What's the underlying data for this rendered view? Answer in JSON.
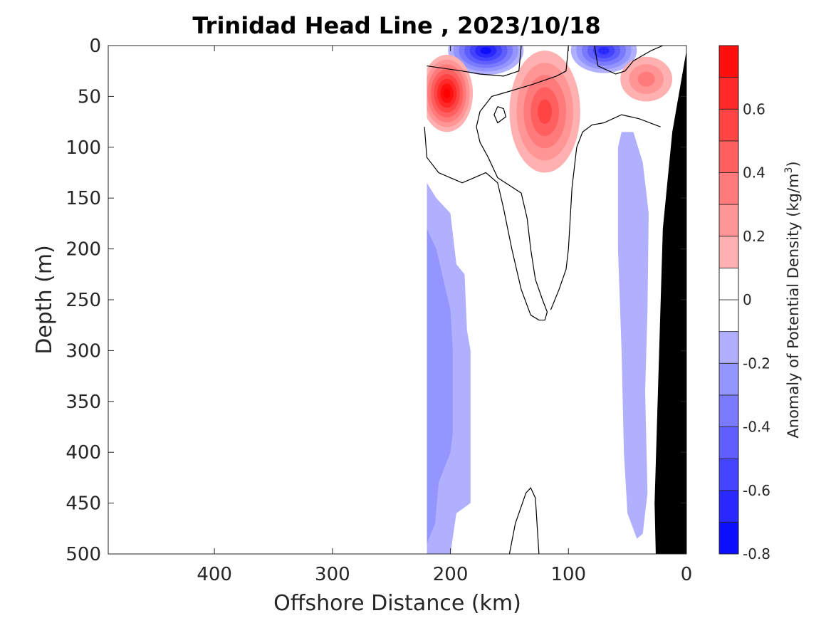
{
  "chart_data": {
    "type": "heatmap",
    "title": "Trinidad Head Line , 2023/10/18",
    "xlabel": "Offshore Distance (km)",
    "ylabel": "Depth (m)",
    "xlim": [
      490,
      0
    ],
    "ylim": [
      0,
      500
    ],
    "x_ticks": [
      400,
      300,
      200,
      100,
      0
    ],
    "y_ticks": [
      0,
      50,
      100,
      150,
      200,
      250,
      300,
      350,
      400,
      450,
      500
    ],
    "x_reversed": true,
    "y_reversed": true,
    "colorbar": {
      "label_prefix": "Anomaly of Potential Density (kg/m",
      "label_sup": "3",
      "label_suffix": ")",
      "range": [
        -0.8,
        0.8
      ],
      "levels": [
        -0.8,
        -0.7,
        -0.6,
        -0.5,
        -0.4,
        -0.3,
        -0.2,
        -0.1,
        0,
        0.1,
        0.2,
        0.3,
        0.4,
        0.5,
        0.6,
        0.7,
        0.8
      ],
      "ticks": [
        -0.8,
        -0.6,
        -0.4,
        -0.2,
        0,
        0.2,
        0.4,
        0.6
      ],
      "tick_labels": [
        "-0.8",
        "-0.6",
        "-0.4",
        "-0.2",
        "0",
        "0.2",
        "0.4",
        "0.6"
      ],
      "colormap": "blue-white-red",
      "colors": {
        "negative_max": "#0000ff",
        "neutral": "#ffffff",
        "positive_max": "#ff0000"
      }
    },
    "zero_contour_color": "#000000",
    "bathymetry_color": "#000000",
    "regions": [
      {
        "kind": "blob",
        "x": 170,
        "y": 5,
        "rx": 32,
        "ry": 24,
        "value": -0.65
      },
      {
        "kind": "blob",
        "x": 70,
        "y": 5,
        "rx": 28,
        "ry": 22,
        "value": -0.6
      },
      {
        "kind": "blob",
        "x": 203,
        "y": 47,
        "rx": 22,
        "ry": 38,
        "value": 0.75
      },
      {
        "kind": "blob",
        "x": 120,
        "y": 65,
        "rx": 30,
        "ry": 60,
        "value": 0.45
      },
      {
        "kind": "blob",
        "x": 34,
        "y": 33,
        "rx": 22,
        "ry": 22,
        "value": 0.35
      },
      {
        "kind": "poly",
        "value": -0.15,
        "points": [
          [
            220,
            135
          ],
          [
            212,
            150
          ],
          [
            200,
            165
          ],
          [
            195,
            215
          ],
          [
            188,
            225
          ],
          [
            186,
            280
          ],
          [
            183,
            300
          ],
          [
            183,
            390
          ],
          [
            183,
            450
          ],
          [
            195,
            460
          ],
          [
            200,
            500
          ],
          [
            220,
            500
          ]
        ]
      },
      {
        "kind": "poly",
        "value": -0.25,
        "points": [
          [
            220,
            180
          ],
          [
            212,
            200
          ],
          [
            205,
            235
          ],
          [
            200,
            260
          ],
          [
            198,
            300
          ],
          [
            198,
            380
          ],
          [
            200,
            400
          ],
          [
            210,
            430
          ],
          [
            213,
            470
          ],
          [
            220,
            490
          ]
        ]
      },
      {
        "kind": "poly",
        "value": -0.15,
        "points": [
          [
            55,
            85
          ],
          [
            45,
            85
          ],
          [
            37,
            115
          ],
          [
            32,
            165
          ],
          [
            33,
            260
          ],
          [
            35,
            340
          ],
          [
            33,
            440
          ],
          [
            37,
            480
          ],
          [
            42,
            485
          ],
          [
            50,
            460
          ],
          [
            53,
            400
          ],
          [
            55,
            300
          ],
          [
            58,
            200
          ],
          [
            58,
            100
          ]
        ]
      }
    ],
    "zero_contours": [
      [
        [
          220,
          20
        ],
        [
          190,
          25
        ],
        [
          175,
          28
        ],
        [
          155,
          30
        ],
        [
          142,
          25
        ],
        [
          140,
          0
        ]
      ],
      [
        [
          100,
          0
        ],
        [
          102,
          25
        ],
        [
          110,
          30
        ],
        [
          130,
          38
        ],
        [
          150,
          45
        ],
        [
          165,
          50
        ],
        [
          175,
          65
        ],
        [
          178,
          80
        ],
        [
          175,
          95
        ],
        [
          168,
          110
        ],
        [
          160,
          130
        ],
        [
          140,
          145
        ],
        [
          135,
          170
        ],
        [
          132,
          200
        ],
        [
          128,
          230
        ],
        [
          122,
          250
        ],
        [
          118,
          262
        ],
        [
          120,
          270
        ],
        [
          125,
          270
        ],
        [
          132,
          265
        ],
        [
          140,
          240
        ],
        [
          148,
          200
        ],
        [
          155,
          160
        ],
        [
          160,
          135
        ],
        [
          170,
          125
        ],
        [
          180,
          130
        ],
        [
          190,
          135
        ],
        [
          200,
          130
        ],
        [
          210,
          125
        ],
        [
          220,
          110
        ],
        [
          222,
          80
        ]
      ],
      [
        [
          78,
          0
        ],
        [
          75,
          20
        ],
        [
          60,
          28
        ],
        [
          52,
          25
        ],
        [
          45,
          15
        ],
        [
          30,
          5
        ],
        [
          20,
          0
        ]
      ],
      [
        [
          22,
          80
        ],
        [
          40,
          72
        ],
        [
          55,
          68
        ],
        [
          70,
          76
        ],
        [
          80,
          78
        ],
        [
          88,
          85
        ],
        [
          93,
          100
        ],
        [
          97,
          140
        ],
        [
          100,
          200
        ],
        [
          102,
          220
        ],
        [
          108,
          240
        ],
        [
          115,
          260
        ]
      ],
      [
        [
          160,
          60
        ],
        [
          163,
          68
        ],
        [
          160,
          76
        ],
        [
          153,
          70
        ],
        [
          155,
          62
        ],
        [
          160,
          60
        ]
      ],
      [
        [
          150,
          500
        ],
        [
          145,
          470
        ],
        [
          136,
          440
        ],
        [
          132,
          435
        ],
        [
          128,
          445
        ],
        [
          125,
          500
        ]
      ]
    ],
    "bathymetry": [
      [
        0,
        5
      ],
      [
        0,
        500
      ],
      [
        26,
        500
      ],
      [
        27,
        450
      ],
      [
        20,
        180
      ],
      [
        12,
        85
      ],
      [
        0,
        5
      ]
    ],
    "data_mask_x_max": 220
  }
}
